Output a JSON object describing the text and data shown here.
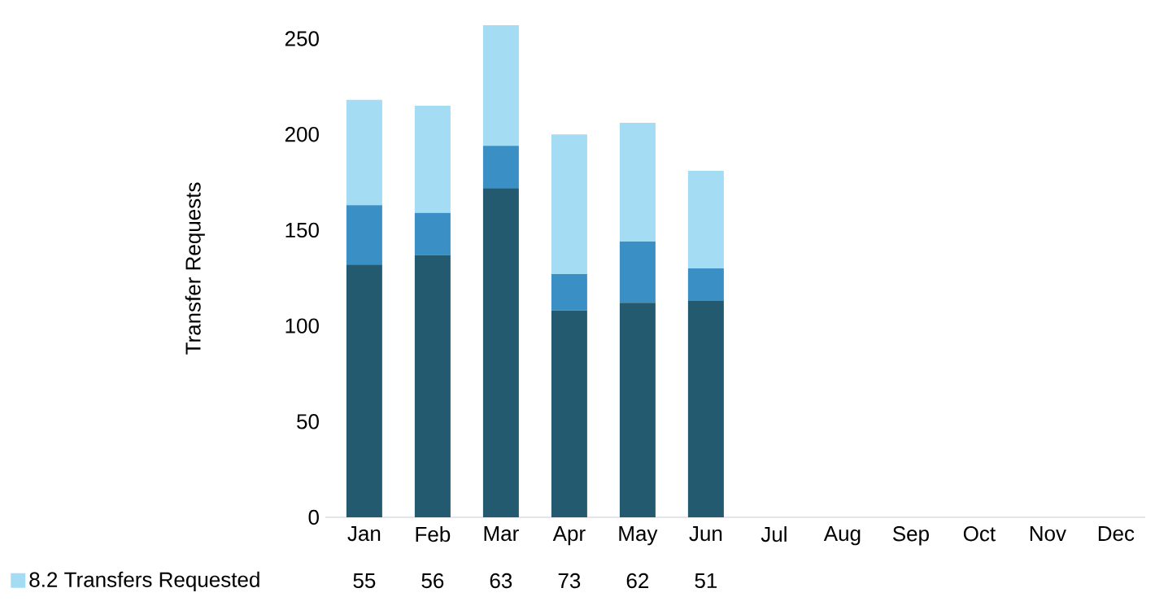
{
  "chart_data": {
    "type": "bar",
    "stacked": true,
    "ylabel": "Transfer Requests",
    "categories": [
      "Jan",
      "Feb",
      "Mar",
      "Apr",
      "May",
      "Jun",
      "Jul",
      "Aug",
      "Sep",
      "Oct",
      "Nov",
      "Dec"
    ],
    "ylim": [
      0,
      260
    ],
    "yticks": [
      0,
      50,
      100,
      150,
      200,
      250
    ],
    "legend": "bottom left",
    "series": [
      {
        "color": "#235a6f",
        "values": [
          132,
          137,
          172,
          108,
          112,
          113,
          null,
          null,
          null,
          null,
          null,
          null
        ]
      },
      {
        "color": "#3a8fc4",
        "values": [
          31,
          22,
          22,
          19,
          32,
          17,
          null,
          null,
          null,
          null,
          null,
          null
        ]
      },
      {
        "name": "8.2 Transfers Requested",
        "color": "#a3dcf3",
        "values": [
          55,
          56,
          63,
          73,
          62,
          51,
          null,
          null,
          null,
          null,
          null,
          null
        ],
        "value_labels": [
          "55",
          "56",
          "63",
          "73",
          "62",
          "51",
          null,
          null,
          null,
          null,
          null,
          null
        ]
      }
    ]
  }
}
